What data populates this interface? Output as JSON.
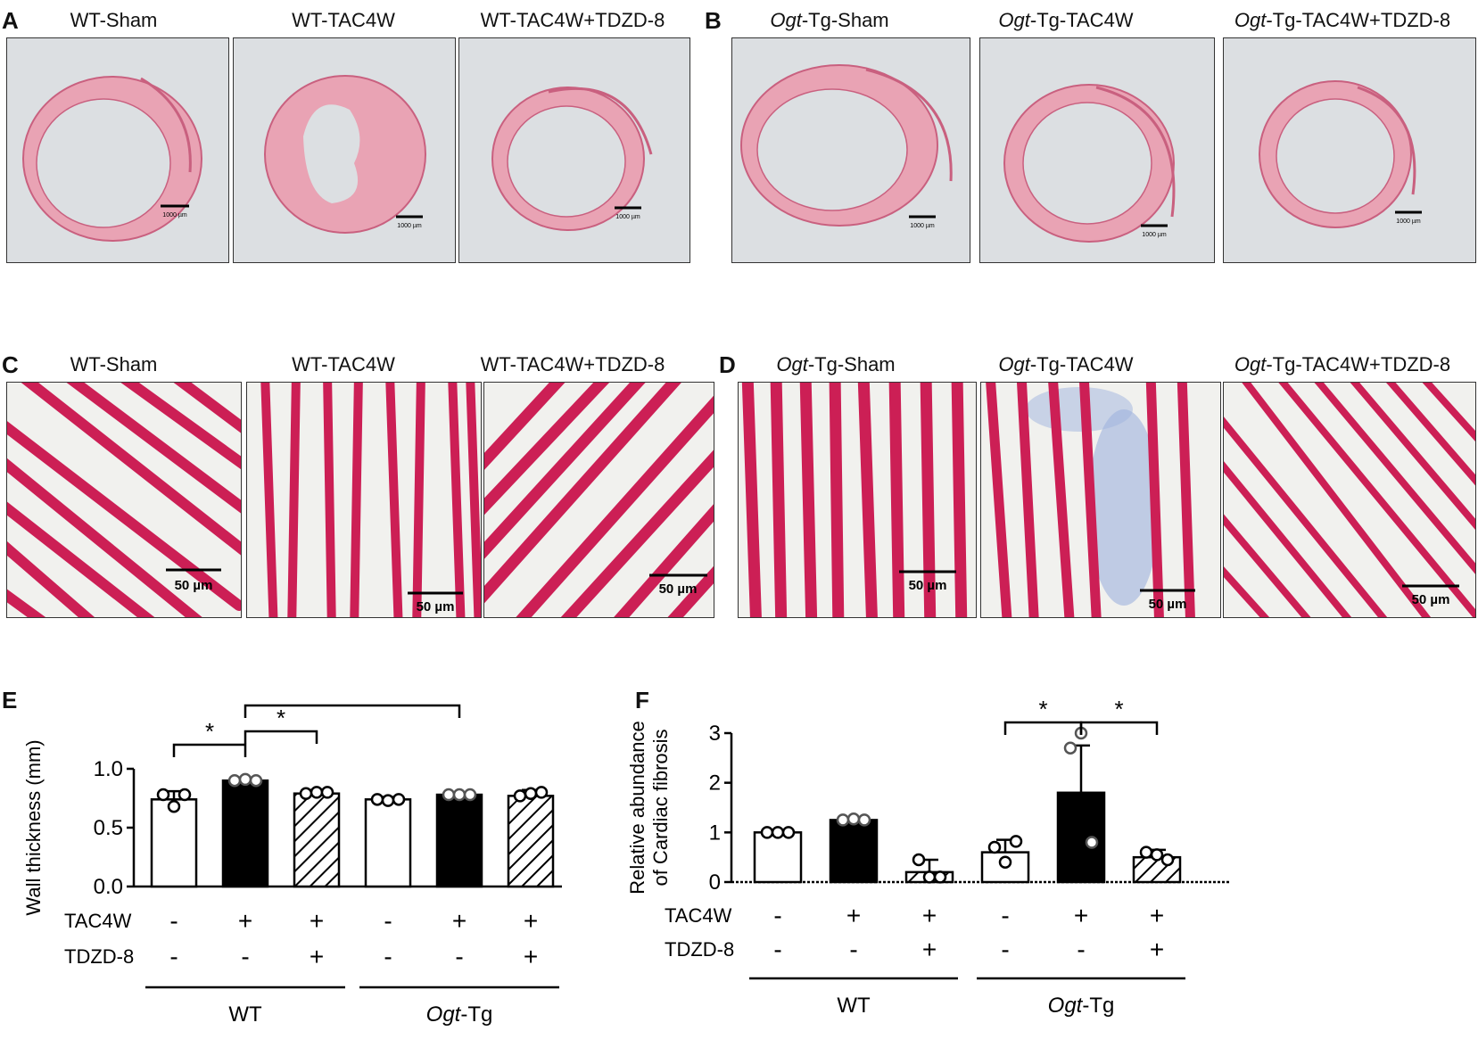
{
  "panels": {
    "A": {
      "letter": "A",
      "titles": [
        "WT-Sham",
        "WT-TAC4W",
        "WT-TAC4W+TDZD-8"
      ],
      "scale": "1000 µm"
    },
    "B": {
      "letter": "B",
      "titles_prefix": [
        "Ogt",
        "Ogt",
        "Ogt"
      ],
      "titles_suffix": [
        "-Tg-Sham",
        "-Tg-TAC4W",
        "-Tg-TAC4W+TDZD-8"
      ],
      "scale": "1000 µm"
    },
    "C": {
      "letter": "C",
      "titles": [
        "WT-Sham",
        "WT-TAC4W",
        "WT-TAC4W+TDZD-8"
      ],
      "scale": "50 µm"
    },
    "D": {
      "letter": "D",
      "titles_prefix": [
        "Ogt",
        "Ogt",
        "Ogt"
      ],
      "titles_suffix": [
        "-Tg-Sham",
        "-Tg-TAC4W",
        "-Tg-TAC4W+TDZD-8"
      ],
      "scale": "50 µm"
    },
    "E": {
      "letter": "E"
    },
    "F": {
      "letter": "F"
    }
  },
  "colors": {
    "he_bg": "#dcdfe2",
    "he_tissue": "#e9a3b4",
    "he_tissue_edge": "#c9607f",
    "muscle": "#cc1f55",
    "trichrome_bg": "#f1f1ee",
    "fibrosis_blue": "#9fb3de"
  },
  "chart_data": [
    {
      "type": "bar",
      "panel": "E",
      "ylabel": "Wall thickness (mm)",
      "ylim": [
        0,
        1.0
      ],
      "yticks": [
        "0.0",
        "0.5",
        "1.0"
      ],
      "categories": [
        "WT-Sham",
        "WT-TAC4W",
        "WT-TAC4W+TDZD-8",
        "Ogt-Tg-Sham",
        "Ogt-Tg-TAC4W",
        "Ogt-Tg-TAC4W+TDZD-8"
      ],
      "values": [
        0.74,
        0.9,
        0.79,
        0.74,
        0.78,
        0.77
      ],
      "errors": [
        0.07,
        0.02,
        0.03,
        0.02,
        0.01,
        0.05
      ],
      "fills": [
        "white",
        "black",
        "hatch",
        "white",
        "black",
        "hatch"
      ],
      "points": [
        [
          0.78,
          0.68,
          0.78
        ],
        [
          0.9,
          0.91,
          0.9
        ],
        [
          0.79,
          0.8,
          0.8
        ],
        [
          0.74,
          0.73,
          0.74
        ],
        [
          0.78,
          0.78,
          0.78
        ],
        [
          0.77,
          0.79,
          0.8
        ]
      ],
      "row_labels": [
        "TAC4W",
        "TDZD-8"
      ],
      "tac4w": [
        "-",
        "+",
        "+",
        "-",
        "+",
        "+"
      ],
      "tdzd8": [
        "-",
        "-",
        "+",
        "-",
        "-",
        "+"
      ],
      "group_labels": [
        "WT",
        "Ogt-Tg"
      ],
      "group_label_italic": [
        "",
        "Ogt"
      ],
      "group_label_rest": [
        "WT",
        "-Tg"
      ],
      "significance": [
        {
          "from": 0,
          "to": 1,
          "label": "*"
        },
        {
          "from": 1,
          "to": 2,
          "label": "*"
        },
        {
          "from": 1,
          "to": 4,
          "label": "*"
        }
      ]
    },
    {
      "type": "bar",
      "panel": "F",
      "ylabel_lines": [
        "Relative abundance",
        "of Cardiac fibrosis"
      ],
      "ylim": [
        0,
        3
      ],
      "yticks": [
        "0",
        "1",
        "2",
        "3"
      ],
      "categories": [
        "WT-Sham",
        "WT-TAC4W",
        "WT-TAC4W+TDZD-8",
        "Ogt-Tg-Sham",
        "Ogt-Tg-TAC4W",
        "Ogt-Tg-TAC4W+TDZD-8"
      ],
      "values": [
        1.0,
        1.25,
        0.2,
        0.6,
        1.8,
        0.5
      ],
      "errors": [
        0.02,
        0.05,
        0.25,
        0.25,
        0.95,
        0.15
      ],
      "fills": [
        "white",
        "black",
        "hatch",
        "white",
        "black",
        "hatch"
      ],
      "points": [
        [
          1.0,
          1.0,
          1.0
        ],
        [
          1.25,
          1.27,
          1.25
        ],
        [
          0.45,
          0.1,
          0.1
        ],
        [
          0.7,
          0.4,
          0.82
        ],
        [
          2.7,
          3.0,
          0.8
        ],
        [
          0.6,
          0.55,
          0.45
        ]
      ],
      "row_labels": [
        "TAC4W",
        "TDZD-8"
      ],
      "tac4w": [
        "-",
        "+",
        "+",
        "-",
        "+",
        "+"
      ],
      "tdzd8": [
        "-",
        "-",
        "+",
        "-",
        "-",
        "+"
      ],
      "group_labels": [
        "WT",
        "Ogt-Tg"
      ],
      "group_label_italic": [
        "",
        "Ogt"
      ],
      "group_label_rest": [
        "WT",
        "-Tg"
      ],
      "significance": [
        {
          "from": 3,
          "to": 4,
          "label": "*"
        },
        {
          "from": 4,
          "to": 5,
          "label": "*"
        }
      ]
    }
  ]
}
